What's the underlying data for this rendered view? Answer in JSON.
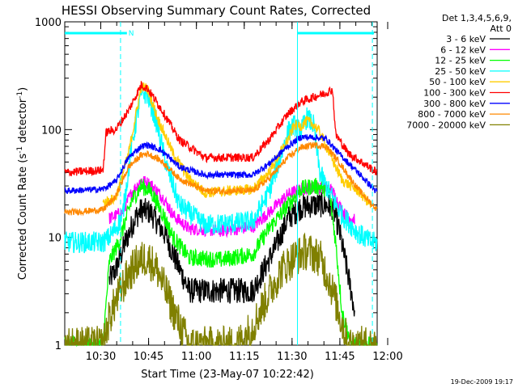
{
  "chart_data": {
    "type": "line",
    "title": "HESSI Observing Summary Count Rates, Corrected",
    "xlabel": "Start Time (23-May-07 10:22:42)",
    "ylabel_main": "Corrected Count Rate (s",
    "ylabel_sup1": "-1",
    "ylabel_mid": " detector",
    "ylabel_sup2": "-1",
    "ylabel_end": ")",
    "x_ticks": [
      "10:30",
      "10:45",
      "11:00",
      "11:15",
      "11:30",
      "11:45",
      "12:00"
    ],
    "x_range_minutes": [
      -4,
      94
    ],
    "y_scale": "log",
    "y_ticks": [
      "1",
      "10",
      "100",
      "1000"
    ],
    "ylim": [
      1,
      1000
    ],
    "legend_header": [
      "Det 1,3,4,5,6,9,",
      "Att 0"
    ],
    "legend_position": "right",
    "footer_date": "19-Dec-2009 19:17",
    "flag_marker": "N",
    "cyan_bars": [
      [
        -4.5,
        15.5
      ],
      [
        69,
        93
      ]
    ],
    "vertical_lines": [
      {
        "t": 13.5,
        "style": "dashed",
        "color": "#00ffff"
      },
      {
        "t": 69,
        "style": "solid",
        "color": "#00ffff"
      },
      {
        "t": 92.5,
        "style": "dashed",
        "color": "#00ffff"
      }
    ],
    "series": [
      {
        "name": "3 - 6 keV",
        "color": "#000000",
        "start": 10,
        "end": 87,
        "noise": 0.12,
        "points": [
          [
            10,
            4
          ],
          [
            12,
            5
          ],
          [
            15,
            9
          ],
          [
            18,
            15
          ],
          [
            20,
            18
          ],
          [
            23,
            17
          ],
          [
            28,
            10
          ],
          [
            30,
            7
          ],
          [
            35,
            3.2
          ],
          [
            55,
            3.2
          ],
          [
            62,
            8
          ],
          [
            66,
            15
          ],
          [
            70,
            19
          ],
          [
            74,
            20
          ],
          [
            78,
            20
          ],
          [
            80,
            19
          ],
          [
            82,
            12
          ],
          [
            84,
            6
          ],
          [
            86,
            3
          ],
          [
            87,
            2
          ]
        ]
      },
      {
        "name": "6 - 12 keV",
        "color": "#ff00ff",
        "start": 10,
        "end": 87,
        "noise": 0.06,
        "points": [
          [
            10,
            15
          ],
          [
            14,
            17
          ],
          [
            17,
            26
          ],
          [
            20,
            34
          ],
          [
            23,
            31
          ],
          [
            27,
            23
          ],
          [
            30,
            16
          ],
          [
            35,
            12
          ],
          [
            45,
            11.5
          ],
          [
            55,
            12.5
          ],
          [
            60,
            17
          ],
          [
            66,
            25
          ],
          [
            70,
            28
          ],
          [
            74,
            29
          ],
          [
            78,
            29
          ],
          [
            80,
            27
          ],
          [
            82,
            20
          ],
          [
            84,
            16
          ],
          [
            86,
            15
          ],
          [
            87,
            15
          ]
        ]
      },
      {
        "name": "12 - 25 keV",
        "color": "#00ff00",
        "start": -4,
        "end": 94,
        "noise": 0.08,
        "points": [
          [
            -4,
            1
          ],
          [
            8,
            1
          ],
          [
            10,
            6
          ],
          [
            13,
            9
          ],
          [
            17,
            22
          ],
          [
            20,
            30
          ],
          [
            23,
            27
          ],
          [
            27,
            16
          ],
          [
            30,
            10
          ],
          [
            35,
            6.5
          ],
          [
            45,
            6.2
          ],
          [
            55,
            7
          ],
          [
            60,
            12
          ],
          [
            66,
            20
          ],
          [
            70,
            28
          ],
          [
            74,
            30
          ],
          [
            77,
            29
          ],
          [
            79,
            27
          ],
          [
            81,
            9
          ],
          [
            83,
            2
          ],
          [
            86,
            1
          ],
          [
            94,
            1
          ]
        ]
      },
      {
        "name": "25 - 50 keV",
        "color": "#00ffff",
        "start": -4,
        "end": 94,
        "noise": 0.1,
        "points": [
          [
            -4,
            9
          ],
          [
            8,
            9
          ],
          [
            10,
            10
          ],
          [
            14,
            15
          ],
          [
            17,
            70
          ],
          [
            20,
            220
          ],
          [
            22,
            210
          ],
          [
            25,
            110
          ],
          [
            28,
            45
          ],
          [
            32,
            20
          ],
          [
            40,
            13
          ],
          [
            55,
            14
          ],
          [
            60,
            26
          ],
          [
            64,
            60
          ],
          [
            66,
            95
          ],
          [
            68,
            110
          ],
          [
            70,
            95
          ],
          [
            72,
            130
          ],
          [
            74,
            110
          ],
          [
            76,
            40
          ],
          [
            79,
            26
          ],
          [
            83,
            16
          ],
          [
            88,
            11
          ],
          [
            92,
            9
          ],
          [
            94,
            9
          ]
        ]
      },
      {
        "name": "50 - 100 keV",
        "color": "#ffcc00",
        "start": 8,
        "end": 92,
        "noise": 0.05,
        "points": [
          [
            8,
            21
          ],
          [
            12,
            23
          ],
          [
            16,
            60
          ],
          [
            20,
            250
          ],
          [
            22,
            240
          ],
          [
            25,
            130
          ],
          [
            30,
            60
          ],
          [
            35,
            35
          ],
          [
            40,
            26
          ],
          [
            55,
            28
          ],
          [
            60,
            40
          ],
          [
            66,
            80
          ],
          [
            68,
            110
          ],
          [
            70,
            108
          ],
          [
            72,
            120
          ],
          [
            74,
            112
          ],
          [
            76,
            95
          ],
          [
            79,
            60
          ],
          [
            83,
            34
          ],
          [
            88,
            27
          ],
          [
            92,
            20
          ]
        ]
      },
      {
        "name": "100 - 300 keV",
        "color": "#ff0000",
        "start": -4,
        "end": 94,
        "noise": 0.04,
        "points": [
          [
            -4,
            40
          ],
          [
            8,
            42
          ],
          [
            9,
            95
          ],
          [
            12,
            100
          ],
          [
            16,
            150
          ],
          [
            20,
            260
          ],
          [
            22,
            240
          ],
          [
            26,
            160
          ],
          [
            32,
            80
          ],
          [
            40,
            55
          ],
          [
            55,
            55
          ],
          [
            60,
            80
          ],
          [
            66,
            140
          ],
          [
            70,
            180
          ],
          [
            74,
            200
          ],
          [
            78,
            220
          ],
          [
            80,
            235
          ],
          [
            81,
            90
          ],
          [
            85,
            60
          ],
          [
            90,
            48
          ],
          [
            94,
            40
          ]
        ]
      },
      {
        "name": "300 - 800 keV",
        "color": "#0000ff",
        "start": -4,
        "end": 94,
        "noise": 0.03,
        "points": [
          [
            -4,
            27
          ],
          [
            8,
            28
          ],
          [
            12,
            33
          ],
          [
            16,
            55
          ],
          [
            20,
            70
          ],
          [
            22,
            72
          ],
          [
            26,
            65
          ],
          [
            32,
            45
          ],
          [
            40,
            38
          ],
          [
            55,
            38
          ],
          [
            60,
            48
          ],
          [
            66,
            70
          ],
          [
            70,
            85
          ],
          [
            74,
            85
          ],
          [
            78,
            82
          ],
          [
            82,
            60
          ],
          [
            88,
            40
          ],
          [
            94,
            26
          ]
        ]
      },
      {
        "name": "800 - 7000 keV",
        "color": "#ff8800",
        "start": -4,
        "end": 94,
        "noise": 0.03,
        "points": [
          [
            -4,
            17
          ],
          [
            8,
            18
          ],
          [
            12,
            24
          ],
          [
            16,
            45
          ],
          [
            20,
            58
          ],
          [
            22,
            60
          ],
          [
            26,
            52
          ],
          [
            32,
            35
          ],
          [
            40,
            27
          ],
          [
            55,
            27
          ],
          [
            60,
            35
          ],
          [
            66,
            55
          ],
          [
            70,
            68
          ],
          [
            74,
            72
          ],
          [
            78,
            70
          ],
          [
            82,
            50
          ],
          [
            88,
            28
          ],
          [
            94,
            18
          ]
        ]
      },
      {
        "name": "7000 - 20000 keV",
        "color": "#808000",
        "start": -4,
        "end": 94,
        "noise": 0.18,
        "points": [
          [
            -4,
            1
          ],
          [
            8,
            1
          ],
          [
            10,
            1.8
          ],
          [
            13,
            3
          ],
          [
            16,
            4.5
          ],
          [
            19,
            6
          ],
          [
            22,
            6.5
          ],
          [
            25,
            5
          ],
          [
            28,
            3
          ],
          [
            31,
            1.8
          ],
          [
            35,
            1
          ],
          [
            50,
            1
          ],
          [
            55,
            1.5
          ],
          [
            60,
            3
          ],
          [
            64,
            5
          ],
          [
            68,
            6.5
          ],
          [
            72,
            7.5
          ],
          [
            76,
            6.5
          ],
          [
            79,
            4
          ],
          [
            82,
            2
          ],
          [
            85,
            1
          ],
          [
            94,
            1
          ]
        ]
      }
    ]
  }
}
